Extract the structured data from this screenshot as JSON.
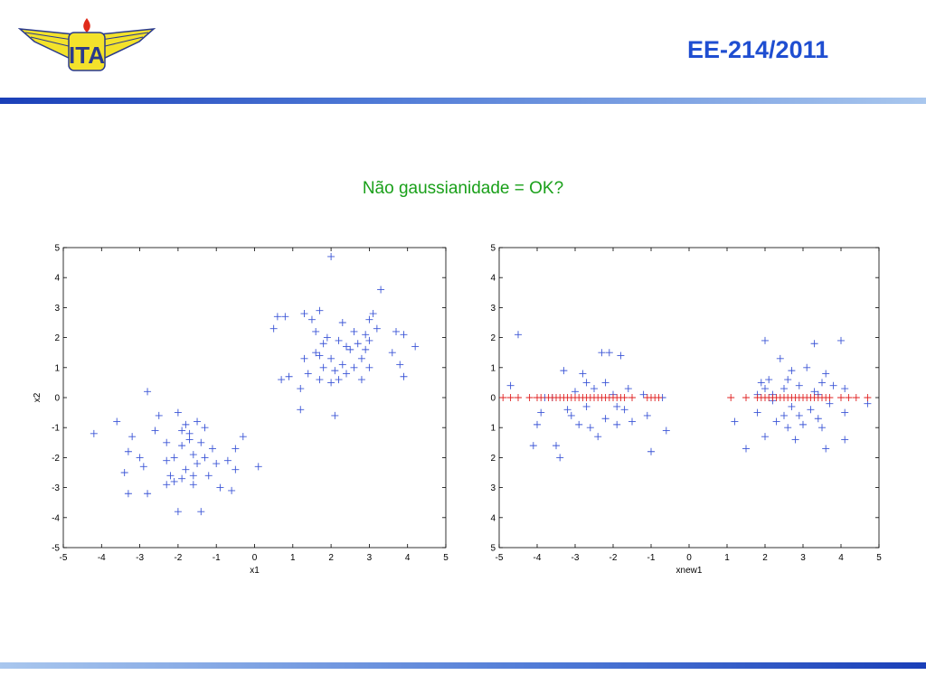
{
  "header": {
    "title": "EE-214/2011",
    "logo_text": "ITA"
  },
  "slide": {
    "heading": "Não gaussianidade = OK?"
  },
  "colors": {
    "title_blue": "#1f4ed1",
    "heading_green": "#1aa01a",
    "marker_blue": "#3b55d6",
    "marker_red": "#e02020"
  },
  "chart_data": [
    {
      "type": "scatter",
      "title": "",
      "xlabel": "x1",
      "ylabel": "x2",
      "xlim": [
        -5,
        5
      ],
      "ylim": [
        -5,
        5
      ],
      "xticks": [
        "-5",
        "-4",
        "-3",
        "-2",
        "-1",
        "0",
        "1",
        "2",
        "3",
        "4",
        "5"
      ],
      "yticks": [
        "5",
        "4",
        "3",
        "2",
        "1",
        "0",
        "-1",
        "-2",
        "-3",
        "-4",
        "-5"
      ],
      "grid": false,
      "series": [
        {
          "marker": "+",
          "color": "#3b55d6",
          "points": [
            [
              -4.2,
              -1.2
            ],
            [
              -3.6,
              -0.8
            ],
            [
              -3.2,
              -1.3
            ],
            [
              -3.3,
              -1.8
            ],
            [
              -3.4,
              -2.5
            ],
            [
              -3.3,
              -3.2
            ],
            [
              -3.0,
              -2.0
            ],
            [
              -2.9,
              -2.3
            ],
            [
              -2.8,
              0.2
            ],
            [
              -2.8,
              -3.2
            ],
            [
              -2.6,
              -1.1
            ],
            [
              -2.5,
              -0.6
            ],
            [
              -2.3,
              -1.5
            ],
            [
              -2.3,
              -2.1
            ],
            [
              -2.2,
              -2.6
            ],
            [
              -2.1,
              -2.8
            ],
            [
              -2.0,
              -3.8
            ],
            [
              -2.0,
              -0.5
            ],
            [
              -1.9,
              -1.6
            ],
            [
              -1.9,
              -2.7
            ],
            [
              -1.8,
              -0.9
            ],
            [
              -1.8,
              -2.4
            ],
            [
              -1.7,
              -1.2
            ],
            [
              -1.6,
              -1.9
            ],
            [
              -1.6,
              -2.9
            ],
            [
              -1.5,
              -0.8
            ],
            [
              -1.5,
              -2.2
            ],
            [
              -1.4,
              -1.5
            ],
            [
              -1.4,
              -3.8
            ],
            [
              -1.3,
              -1.0
            ],
            [
              -1.3,
              -2.0
            ],
            [
              -1.2,
              -2.6
            ],
            [
              -1.1,
              -1.7
            ],
            [
              -1.0,
              -2.2
            ],
            [
              -0.9,
              -3.0
            ],
            [
              -0.7,
              -2.1
            ],
            [
              -0.6,
              -3.1
            ],
            [
              -0.5,
              -2.4
            ],
            [
              -0.5,
              -1.7
            ],
            [
              -0.3,
              -1.3
            ],
            [
              -2.1,
              -2.0
            ],
            [
              -1.7,
              -1.4
            ],
            [
              -1.9,
              -1.1
            ],
            [
              -2.3,
              -2.9
            ],
            [
              -1.6,
              -2.6
            ],
            [
              0.1,
              -2.3
            ],
            [
              0.5,
              2.3
            ],
            [
              0.6,
              2.7
            ],
            [
              0.7,
              0.6
            ],
            [
              0.8,
              2.7
            ],
            [
              0.9,
              0.7
            ],
            [
              1.2,
              0.3
            ],
            [
              1.2,
              -0.4
            ],
            [
              1.3,
              1.3
            ],
            [
              1.4,
              0.8
            ],
            [
              1.5,
              2.6
            ],
            [
              1.6,
              1.5
            ],
            [
              1.6,
              2.2
            ],
            [
              1.7,
              0.6
            ],
            [
              1.7,
              2.9
            ],
            [
              1.8,
              1.8
            ],
            [
              1.8,
              1.0
            ],
            [
              1.9,
              2.0
            ],
            [
              2.0,
              0.5
            ],
            [
              2.0,
              1.3
            ],
            [
              2.0,
              4.7
            ],
            [
              2.1,
              0.9
            ],
            [
              2.1,
              -0.6
            ],
            [
              2.2,
              1.9
            ],
            [
              2.2,
              0.6
            ],
            [
              2.3,
              2.5
            ],
            [
              2.3,
              1.1
            ],
            [
              2.4,
              0.8
            ],
            [
              2.5,
              1.6
            ],
            [
              2.6,
              2.2
            ],
            [
              2.6,
              1.0
            ],
            [
              2.7,
              1.8
            ],
            [
              2.8,
              1.3
            ],
            [
              2.8,
              0.6
            ],
            [
              2.9,
              2.1
            ],
            [
              2.9,
              1.6
            ],
            [
              3.0,
              2.6
            ],
            [
              3.0,
              1.0
            ],
            [
              3.1,
              2.8
            ],
            [
              3.2,
              2.3
            ],
            [
              3.3,
              3.6
            ],
            [
              3.6,
              1.5
            ],
            [
              3.7,
              2.2
            ],
            [
              3.8,
              1.1
            ],
            [
              3.9,
              2.1
            ],
            [
              3.9,
              0.7
            ],
            [
              4.2,
              1.7
            ],
            [
              1.3,
              2.8
            ],
            [
              1.7,
              1.4
            ],
            [
              2.4,
              1.7
            ],
            [
              3.0,
              1.9
            ]
          ]
        }
      ]
    },
    {
      "type": "scatter",
      "title": "",
      "xlabel": "xnew1",
      "ylabel": "",
      "xlim": [
        -5,
        5
      ],
      "ylim": [
        -5,
        5
      ],
      "xticks": [
        "-5",
        "-4",
        "-3",
        "-2",
        "-1",
        "0",
        "1",
        "2",
        "3",
        "4",
        "5"
      ],
      "yticks": [
        "5",
        "4",
        "3",
        "2",
        "1",
        "0",
        "1",
        "2",
        "3",
        "4",
        "5"
      ],
      "grid": false,
      "series": [
        {
          "marker": "+",
          "color": "#3b55d6",
          "points": [
            [
              -4.5,
              2.1
            ],
            [
              -4.7,
              0.4
            ],
            [
              -4.1,
              -1.6
            ],
            [
              -4.0,
              -0.9
            ],
            [
              -3.9,
              -0.5
            ],
            [
              -3.8,
              0.0
            ],
            [
              -3.5,
              -1.6
            ],
            [
              -3.4,
              -2.0
            ],
            [
              -3.3,
              0.9
            ],
            [
              -3.2,
              -0.4
            ],
            [
              -3.1,
              -0.6
            ],
            [
              -3.0,
              0.2
            ],
            [
              -2.9,
              -0.9
            ],
            [
              -2.8,
              0.8
            ],
            [
              -2.7,
              -0.3
            ],
            [
              -2.6,
              -1.0
            ],
            [
              -2.5,
              0.3
            ],
            [
              -2.4,
              -1.3
            ],
            [
              -2.3,
              1.5
            ],
            [
              -2.2,
              0.5
            ],
            [
              -2.2,
              -0.7
            ],
            [
              -2.1,
              1.5
            ],
            [
              -2.0,
              0.1
            ],
            [
              -1.9,
              -0.9
            ],
            [
              -1.8,
              1.4
            ],
            [
              -1.7,
              -0.4
            ],
            [
              -1.6,
              0.3
            ],
            [
              -1.5,
              -0.8
            ],
            [
              -1.2,
              0.1
            ],
            [
              -1.1,
              -0.6
            ],
            [
              -1.0,
              -1.8
            ],
            [
              -0.6,
              -1.1
            ],
            [
              -0.7,
              0.0
            ],
            [
              -3.6,
              0.0
            ],
            [
              -2.7,
              0.5
            ],
            [
              -1.9,
              -0.3
            ],
            [
              1.2,
              -0.8
            ],
            [
              1.5,
              -1.7
            ],
            [
              1.8,
              0.1
            ],
            [
              1.8,
              -0.5
            ],
            [
              1.9,
              0.5
            ],
            [
              2.0,
              1.9
            ],
            [
              2.0,
              -1.3
            ],
            [
              2.1,
              0.6
            ],
            [
              2.2,
              0.1
            ],
            [
              2.3,
              -0.8
            ],
            [
              2.4,
              1.3
            ],
            [
              2.5,
              0.3
            ],
            [
              2.5,
              -0.6
            ],
            [
              2.6,
              -1.0
            ],
            [
              2.7,
              0.9
            ],
            [
              2.7,
              -0.3
            ],
            [
              2.8,
              -1.4
            ],
            [
              2.9,
              0.4
            ],
            [
              3.0,
              -0.9
            ],
            [
              3.1,
              1.0
            ],
            [
              3.2,
              -0.4
            ],
            [
              3.3,
              1.8
            ],
            [
              3.3,
              0.2
            ],
            [
              3.4,
              -0.7
            ],
            [
              3.5,
              0.5
            ],
            [
              3.5,
              -1.0
            ],
            [
              3.6,
              0.8
            ],
            [
              3.6,
              -1.7
            ],
            [
              3.7,
              -0.2
            ],
            [
              4.0,
              1.9
            ],
            [
              4.1,
              0.3
            ],
            [
              4.1,
              -0.5
            ],
            [
              4.1,
              -1.4
            ],
            [
              4.7,
              -0.2
            ],
            [
              2.2,
              -0.1
            ],
            [
              2.9,
              -0.6
            ],
            [
              3.4,
              0.1
            ],
            [
              2.6,
              0.6
            ],
            [
              2.0,
              0.3
            ],
            [
              3.8,
              0.4
            ]
          ]
        },
        {
          "marker": "+",
          "color": "#e02020",
          "points": [
            [
              -4.9,
              0
            ],
            [
              -4.7,
              0
            ],
            [
              -4.5,
              0
            ],
            [
              -4.2,
              0
            ],
            [
              -4.0,
              0
            ],
            [
              -3.9,
              0
            ],
            [
              -3.7,
              0
            ],
            [
              -3.6,
              0
            ],
            [
              -3.5,
              0
            ],
            [
              -3.4,
              0
            ],
            [
              -3.3,
              0
            ],
            [
              -3.2,
              0
            ],
            [
              -3.1,
              0
            ],
            [
              -3.0,
              0
            ],
            [
              -2.9,
              0
            ],
            [
              -2.8,
              0
            ],
            [
              -2.7,
              0
            ],
            [
              -2.6,
              0
            ],
            [
              -2.5,
              0
            ],
            [
              -2.4,
              0
            ],
            [
              -2.3,
              0
            ],
            [
              -2.2,
              0
            ],
            [
              -2.1,
              0
            ],
            [
              -2.0,
              0
            ],
            [
              -1.9,
              0
            ],
            [
              -1.8,
              0
            ],
            [
              -1.7,
              0
            ],
            [
              -1.5,
              0
            ],
            [
              -1.1,
              0
            ],
            [
              -1.0,
              0
            ],
            [
              -0.9,
              0
            ],
            [
              -0.8,
              0
            ],
            [
              1.1,
              0
            ],
            [
              1.5,
              0
            ],
            [
              1.8,
              0
            ],
            [
              1.9,
              0
            ],
            [
              2.0,
              0
            ],
            [
              2.1,
              0
            ],
            [
              2.2,
              0
            ],
            [
              2.3,
              0
            ],
            [
              2.4,
              0
            ],
            [
              2.5,
              0
            ],
            [
              2.6,
              0
            ],
            [
              2.7,
              0
            ],
            [
              2.8,
              0
            ],
            [
              2.9,
              0
            ],
            [
              3.0,
              0
            ],
            [
              3.1,
              0
            ],
            [
              3.2,
              0
            ],
            [
              3.3,
              0
            ],
            [
              3.4,
              0
            ],
            [
              3.5,
              0
            ],
            [
              3.6,
              0
            ],
            [
              3.7,
              0
            ],
            [
              4.0,
              0
            ],
            [
              4.2,
              0
            ],
            [
              4.4,
              0
            ],
            [
              4.7,
              0
            ]
          ]
        }
      ]
    }
  ]
}
